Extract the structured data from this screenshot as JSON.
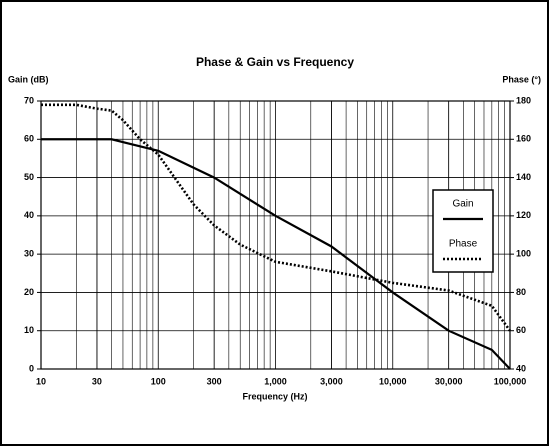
{
  "chart_data": {
    "type": "line",
    "title": "Phase & Gain vs Frequency",
    "xlabel": "Frequency (Hz)",
    "ylabel": "Gain (dB)",
    "y2label": "Phase (°)",
    "xscale": "log",
    "xlim": [
      10,
      100000
    ],
    "xticks": [
      10,
      30,
      100,
      300,
      {
        "value": 1000,
        "label": "1,000"
      },
      {
        "value": 3000,
        "label": "3,000"
      },
      {
        "value": 10000,
        "label": "10,000"
      },
      {
        "value": 30000,
        "label": "30,000"
      },
      {
        "value": 100000,
        "label": "100,000"
      }
    ],
    "ylim": [
      0,
      70
    ],
    "yticks": [
      0,
      10,
      20,
      30,
      40,
      50,
      60,
      70
    ],
    "y2lim": [
      40,
      180
    ],
    "y2ticks": [
      40,
      60,
      80,
      100,
      120,
      140,
      160,
      180
    ],
    "grid": true,
    "legend": "right",
    "series": [
      {
        "name": "Gain",
        "color": "#000000",
        "style": "solid",
        "x": [
          10,
          40,
          100,
          300,
          1000,
          3000,
          10000,
          30000,
          70000,
          100000
        ],
        "values": [
          60,
          60,
          57,
          50,
          40,
          32,
          20,
          10,
          5,
          0
        ]
      },
      {
        "name": "Phase",
        "color": "#000000",
        "style": "dotted",
        "axis": "y2",
        "x": [
          10,
          20,
          30,
          40,
          50,
          70,
          100,
          200,
          300,
          500,
          1000,
          3000,
          10000,
          30000,
          70000,
          100000
        ],
        "values": [
          178,
          178,
          176,
          175,
          170,
          160,
          152,
          126,
          115,
          105,
          96,
          91,
          85,
          81,
          73,
          60
        ]
      }
    ]
  }
}
